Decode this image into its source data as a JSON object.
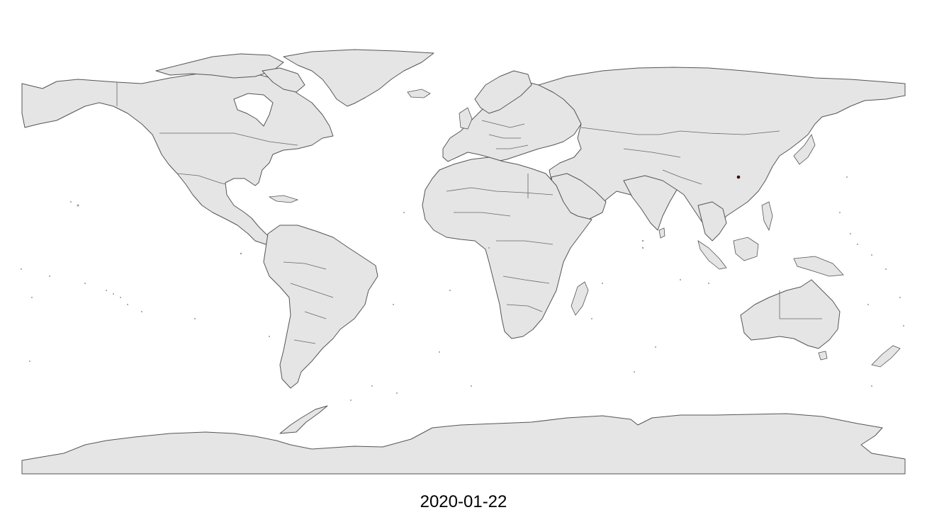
{
  "map": {
    "projection": "equirectangular",
    "land_fill": "#e5e5e5",
    "border_color": "#555555",
    "background": "#ffffff",
    "date_label": "2020-01-22",
    "highlights": [
      {
        "country": "China",
        "region": "Hubei",
        "lon": 114.3,
        "lat": 30.6,
        "color": "#4a0d0d"
      }
    ]
  }
}
